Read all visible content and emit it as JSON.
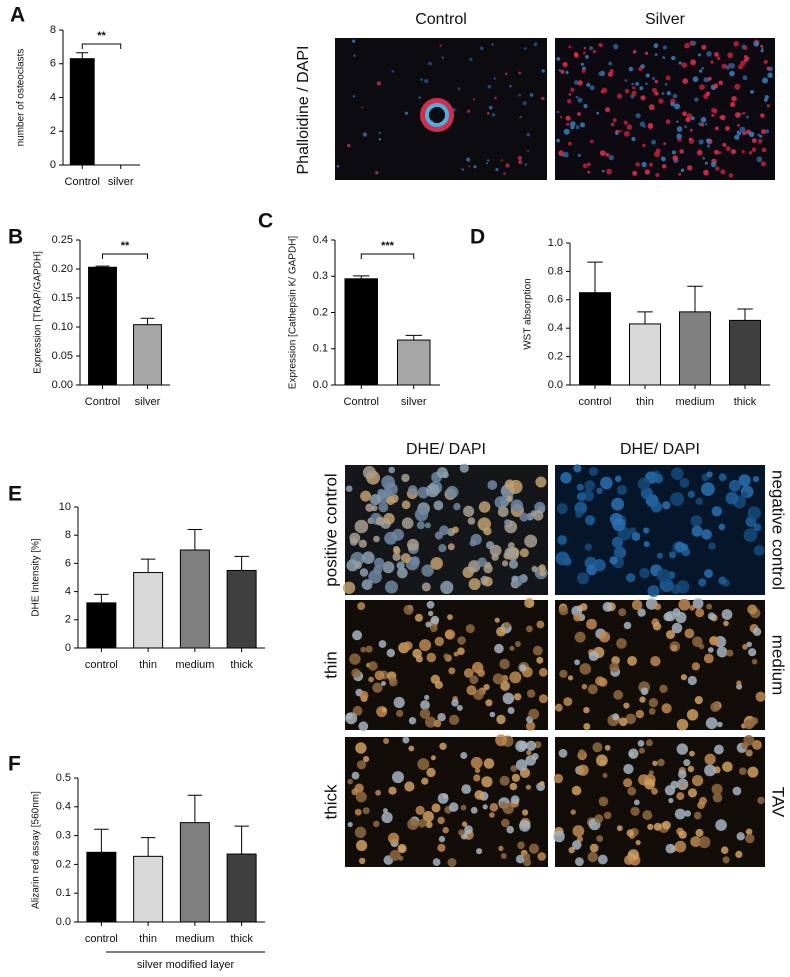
{
  "chart_data": [
    {
      "type": "bar",
      "panel": "A",
      "ylabel": "number of osteoclasts",
      "categories": [
        "Control",
        "silver"
      ],
      "values": [
        6.3,
        0
      ],
      "errors": [
        0.35,
        0
      ],
      "colors": [
        "#000000",
        "#a6a6a6"
      ],
      "ylim": [
        0,
        8
      ],
      "yticks": [
        0,
        2,
        4,
        6,
        8
      ],
      "significance": "**"
    },
    {
      "type": "bar",
      "panel": "B",
      "ylabel": "Expression [TRAP/GAPDH]",
      "categories": [
        "Control",
        "silver"
      ],
      "values": [
        0.203,
        0.104
      ],
      "errors": [
        0.002,
        0.011
      ],
      "colors": [
        "#000000",
        "#a6a6a6"
      ],
      "ylim": [
        0,
        0.25
      ],
      "yticks": [
        {
          "value": 0,
          "label": "0.00"
        },
        0.05,
        {
          "value": 0.1,
          "label": "0.10"
        },
        0.15,
        {
          "value": 0.2,
          "label": "0.20"
        },
        0.25
      ],
      "significance": "**"
    },
    {
      "type": "bar",
      "panel": "C",
      "ylabel": "Expression [Cathepsin K/ GAPDH]",
      "categories": [
        "Control",
        "silver"
      ],
      "values": [
        0.293,
        0.124
      ],
      "errors": [
        0.008,
        0.013
      ],
      "colors": [
        "#000000",
        "#a6a6a6"
      ],
      "ylim": [
        0,
        0.4
      ],
      "yticks": [
        {
          "value": 0,
          "label": "0.0"
        },
        0.1,
        0.2,
        0.3,
        0.4
      ],
      "significance": "***"
    },
    {
      "type": "bar",
      "panel": "D",
      "ylabel": "WST absorption",
      "categories": [
        "control",
        "thin",
        "medium",
        "thick"
      ],
      "values": [
        0.65,
        0.43,
        0.515,
        0.455
      ],
      "errors": [
        0.215,
        0.085,
        0.18,
        0.08
      ],
      "colors": [
        "#000000",
        "#d9d9d9",
        "#808080",
        "#404040"
      ],
      "ylim": [
        0,
        1
      ],
      "yticks": [
        {
          "value": 0,
          "label": "0.0"
        },
        0.2,
        0.4,
        0.6,
        0.8,
        {
          "value": 1,
          "label": "1.0"
        }
      ]
    },
    {
      "type": "bar",
      "panel": "E",
      "ylabel": "DHE Intensity  [%]",
      "categories": [
        "control",
        "thin",
        "medium",
        "thick"
      ],
      "values": [
        3.2,
        5.35,
        6.95,
        5.5
      ],
      "errors": [
        0.6,
        0.95,
        1.45,
        1.0
      ],
      "colors": [
        "#000000",
        "#d9d9d9",
        "#808080",
        "#404040"
      ],
      "ylim": [
        0,
        10
      ],
      "yticks": [
        0,
        2,
        4,
        6,
        8,
        10
      ]
    },
    {
      "type": "bar",
      "panel": "F",
      "ylabel": "Alizarin red assay [560nm]",
      "categories": [
        "control",
        "thin",
        "medium",
        "thick"
      ],
      "values": [
        0.242,
        0.228,
        0.345,
        0.236
      ],
      "errors": [
        0.08,
        0.065,
        0.095,
        0.097
      ],
      "colors": [
        "#000000",
        "#d9d9d9",
        "#808080",
        "#404040"
      ],
      "ylim": [
        0,
        0.5
      ],
      "yticks": [
        {
          "value": 0,
          "label": "0.0"
        },
        0.1,
        0.2,
        0.3,
        0.4,
        0.5
      ],
      "group_label": "silver modified layer"
    }
  ],
  "phalloidine_micrographs": {
    "stain": "Phalloidine / DAPI",
    "columns": [
      "Control",
      "Silver"
    ]
  },
  "dhe_micrographs": {
    "columns": [
      "DHE/ DAPI",
      "DHE/ DAPI"
    ],
    "left_labels": [
      "positive control",
      "thin",
      "thick"
    ],
    "right_labels": [
      "negative control",
      "medium",
      "TAV"
    ]
  }
}
